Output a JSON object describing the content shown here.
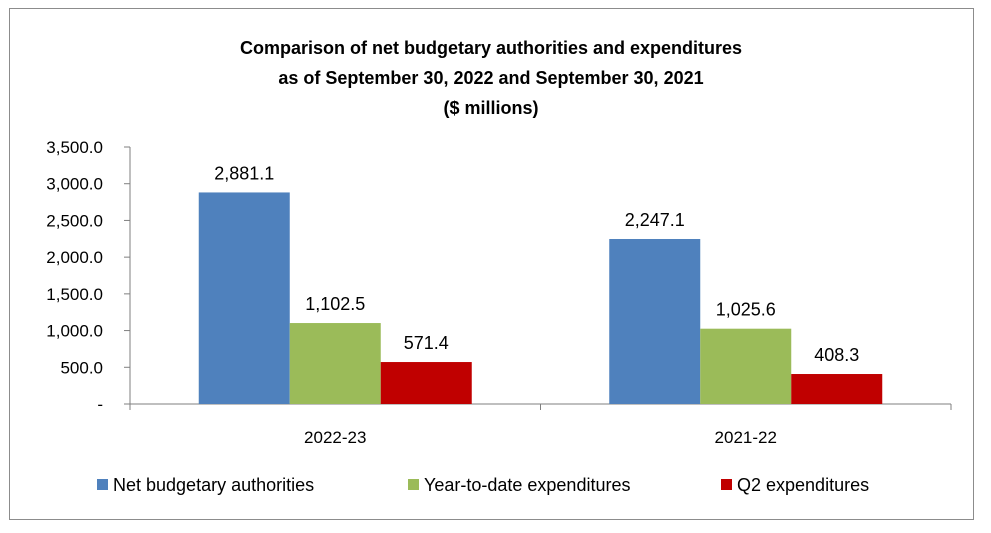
{
  "chart_data": {
    "type": "bar",
    "title": [
      "Comparison of net budgetary authorities and expenditures",
      "as of September 30, 2022 and September 30, 2021",
      "($ millions)"
    ],
    "categories": [
      "2022-23",
      "2021-22"
    ],
    "series": [
      {
        "name": "Net budgetary authorities",
        "values": [
          2881.1,
          2247.1
        ],
        "labels": [
          "2,881.1",
          "2,247.1"
        ],
        "color": "#4f81bd"
      },
      {
        "name": "Year-to-date expenditures",
        "values": [
          1102.5,
          1025.6
        ],
        "labels": [
          "1,102.5",
          "1,025.6"
        ],
        "color": "#9bbb59"
      },
      {
        "name": "Q2 expenditures",
        "values": [
          571.4,
          408.3
        ],
        "labels": [
          "571.4",
          "408.3"
        ],
        "color": "#c00000"
      }
    ],
    "ylim": [
      0,
      3500
    ],
    "yticks": [
      0,
      500,
      1000,
      1500,
      2000,
      2500,
      3000,
      3500
    ],
    "ytick_labels": [
      "-",
      "500.0",
      "1,000.0",
      "1,500.0",
      "2,000.0",
      "2,500.0",
      "3,000.0",
      "3,500.0"
    ],
    "xlabel": "",
    "ylabel": "",
    "legend_position": "bottom",
    "grid": false
  }
}
